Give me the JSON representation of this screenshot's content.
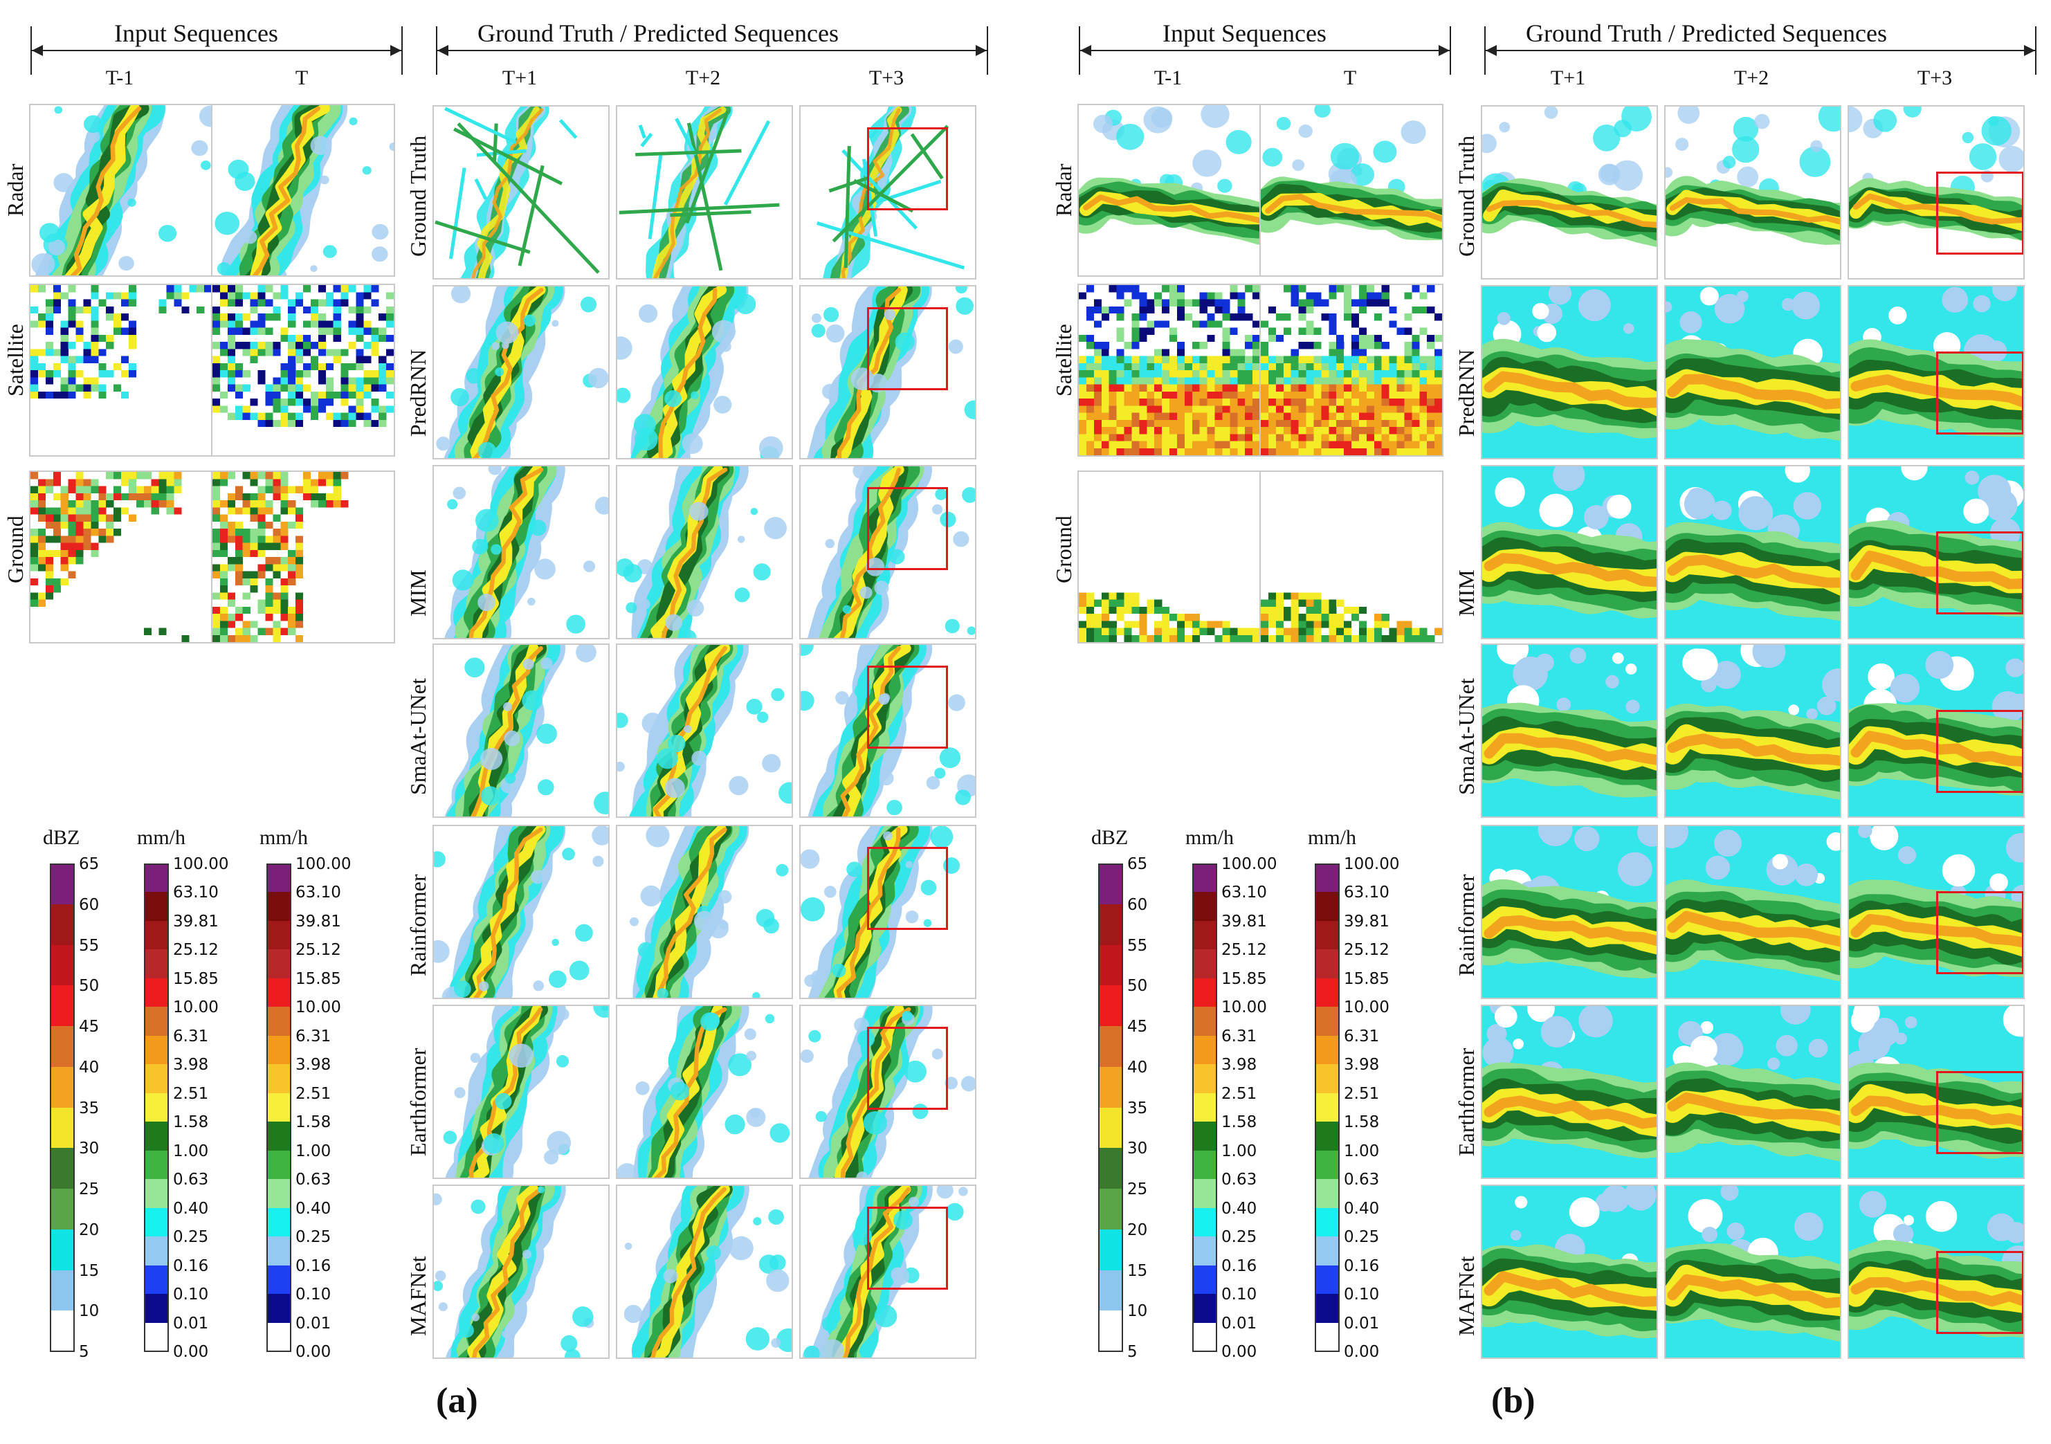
{
  "labels": {
    "input_sequences": "Input Sequences",
    "ground_truth_predicted": "Ground Truth / Predicted Sequences",
    "input_times": [
      "T-1",
      "T"
    ],
    "output_times": [
      "T+1",
      "T+2",
      "T+3"
    ],
    "input_rows": [
      "Radar",
      "Satellite",
      "Ground"
    ],
    "model_rows": [
      "Ground Truth",
      "PredRNN",
      "MIM",
      "SmaAt-UNet",
      "Rainformer",
      "Earthformer",
      "MAFNet"
    ],
    "subfigures": [
      "(a)",
      "(b)"
    ]
  },
  "colorbars": {
    "dbz": {
      "title": "dBZ",
      "ticks": [
        "65",
        "60",
        "55",
        "50",
        "45",
        "40",
        "35",
        "30",
        "25",
        "20",
        "15",
        "10",
        "5"
      ],
      "colors": [
        "#7b1f7b",
        "#a01818",
        "#c0161c",
        "#ee1d1d",
        "#d8702a",
        "#f3a321",
        "#f4e42a",
        "#3b7a2e",
        "#5aa548",
        "#10e3e3",
        "#8ec5ee",
        "#ffffff"
      ]
    },
    "rain": {
      "title": "mm/h",
      "ticks": [
        "100.00",
        "63.10",
        "39.81",
        "25.12",
        "15.85",
        "10.00",
        "6.31",
        "3.98",
        "2.51",
        "1.58",
        "1.00",
        "0.63",
        "0.40",
        "0.25",
        "0.16",
        "0.10",
        "0.01",
        "0.00"
      ],
      "colors": [
        "#7b1f7b",
        "#7a0c0c",
        "#a01818",
        "#b8282a",
        "#ee1d1d",
        "#d8702a",
        "#f39a1d",
        "#f7c42a",
        "#f7ef3a",
        "#1d7a1d",
        "#3fb43f",
        "#97e597",
        "#16f0ee",
        "#94c9f2",
        "#1f3ff2",
        "#0a0a8a",
        "#ffffff"
      ]
    }
  },
  "palette": {
    "white": "#ffffff",
    "lightblue": "#a9d0f2",
    "cyan": "#33e6ea",
    "lightgreen": "#8ee08e",
    "green": "#2ea84a",
    "darkgreen": "#1a6e25",
    "yellow": "#f4ec26",
    "orange": "#f2a41f",
    "darkorange": "#d8702a",
    "red": "#e8221d",
    "darkred": "#a41414",
    "blue": "#1030d8",
    "navy": "#0a0a7a",
    "redbox": "#e0191f"
  }
}
